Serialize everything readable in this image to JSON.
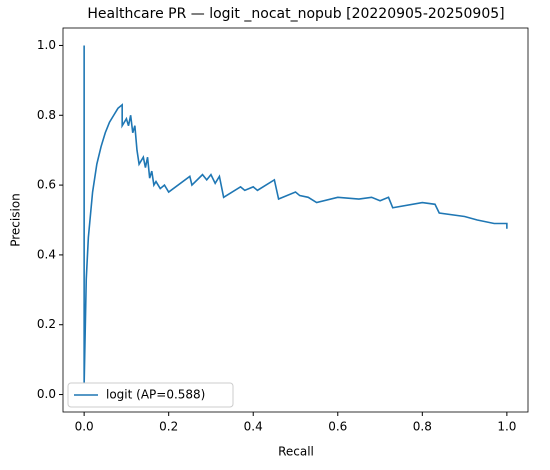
{
  "chart_data": {
    "type": "line",
    "title": "Healthcare PR — logit _nocat_nopub [20220905-20250905]",
    "xlabel": "Recall",
    "ylabel": "Precision",
    "x": [
      0,
      0,
      0.005,
      0.01,
      0.02,
      0.03,
      0.04,
      0.05,
      0.06,
      0.07,
      0.08,
      0.09,
      0.09,
      0.1,
      0.105,
      0.11,
      0.115,
      0.12,
      0.125,
      0.13,
      0.14,
      0.145,
      0.15,
      0.155,
      0.16,
      0.165,
      0.17,
      0.18,
      0.19,
      0.2,
      0.25,
      0.255,
      0.28,
      0.29,
      0.3,
      0.31,
      0.32,
      0.33,
      0.37,
      0.38,
      0.4,
      0.41,
      0.45,
      0.46,
      0.5,
      0.51,
      0.53,
      0.55,
      0.6,
      0.65,
      0.68,
      0.7,
      0.72,
      0.73,
      0.8,
      0.83,
      0.84,
      0.9,
      0.93,
      0.97,
      1.0,
      1.0
    ],
    "series": [
      {
        "name": "logit (AP=0.588)",
        "color": "#1f77b4",
        "values": [
          1.0,
          0.03,
          0.33,
          0.45,
          0.58,
          0.66,
          0.71,
          0.75,
          0.78,
          0.8,
          0.82,
          0.83,
          0.77,
          0.79,
          0.77,
          0.8,
          0.75,
          0.77,
          0.7,
          0.66,
          0.68,
          0.65,
          0.68,
          0.62,
          0.64,
          0.6,
          0.61,
          0.59,
          0.6,
          0.58,
          0.625,
          0.6,
          0.63,
          0.615,
          0.63,
          0.605,
          0.625,
          0.565,
          0.595,
          0.585,
          0.595,
          0.585,
          0.615,
          0.56,
          0.58,
          0.57,
          0.565,
          0.55,
          0.565,
          0.56,
          0.565,
          0.555,
          0.565,
          0.535,
          0.55,
          0.545,
          0.52,
          0.51,
          0.5,
          0.49,
          0.49,
          0.475
        ]
      }
    ],
    "xlim": [
      -0.05,
      1.05
    ],
    "ylim": [
      -0.05,
      1.05
    ],
    "xticks": [
      {
        "value": 0,
        "label": "0.0"
      },
      0.2,
      0.4,
      0.6,
      0.8,
      {
        "value": 1,
        "label": "1.0"
      }
    ],
    "yticks": [
      {
        "value": 0,
        "label": "0.0"
      },
      0.2,
      0.4,
      0.6,
      0.8,
      {
        "value": 1,
        "label": "1.0"
      }
    ],
    "grid": false,
    "legend": "lower left"
  }
}
